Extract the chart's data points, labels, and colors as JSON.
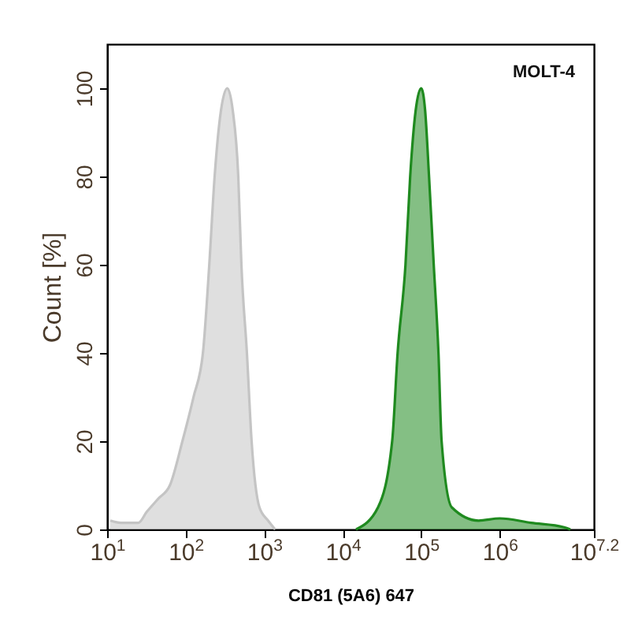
{
  "chart_data": {
    "type": "area",
    "xlabel": "CD81 (5A6) 647",
    "ylabel": "Count [%]",
    "annotations": [
      "MOLT-4"
    ],
    "log": "x",
    "grid": false,
    "xlim": [
      10,
      15848932
    ],
    "ylim": [
      0,
      110
    ],
    "xticks": [
      {
        "value": 10,
        "label": "10$^{1}$"
      },
      {
        "value": 100,
        "label": "10$^{2}$"
      },
      {
        "value": 1000,
        "label": "10$^{3}$"
      },
      {
        "value": 10000,
        "label": "10$^{4}$"
      },
      {
        "value": 100000,
        "label": "10$^{5}$"
      },
      {
        "value": 1000000,
        "label": "10$^{6}$"
      },
      {
        "value": 15848932,
        "label": "10$^{7.2}$"
      }
    ],
    "yticks": [
      0,
      20,
      40,
      60,
      80,
      100
    ],
    "series": [
      {
        "color": "#c4c4c4",
        "x": [
          11,
          15,
          25,
          32,
          45,
          63,
          91,
          126,
          166,
          200,
          234,
          282,
          339,
          398,
          468,
          513,
          603,
          692,
          871,
          1122,
          1380
        ],
        "values": [
          2,
          1.5,
          1.5,
          4,
          7,
          10,
          20,
          30,
          40,
          60,
          80,
          95,
          100,
          95,
          80,
          60,
          40,
          20,
          5,
          2,
          0
        ]
      },
      {
        "color": "#1f8a1f",
        "x": [
          14800,
          28200,
          42700,
          50100,
          63100,
          72400,
          85100,
          100000,
          112200,
          125900,
          144500,
          166000,
          182000,
          245500,
          537000,
          1000000,
          2512000,
          6607000,
          7943000
        ],
        "values": [
          0,
          5,
          20,
          40,
          60,
          80,
          95,
          100,
          95,
          80,
          60,
          40,
          20,
          5,
          2,
          2.5,
          1.5,
          0.5,
          0
        ]
      }
    ]
  }
}
